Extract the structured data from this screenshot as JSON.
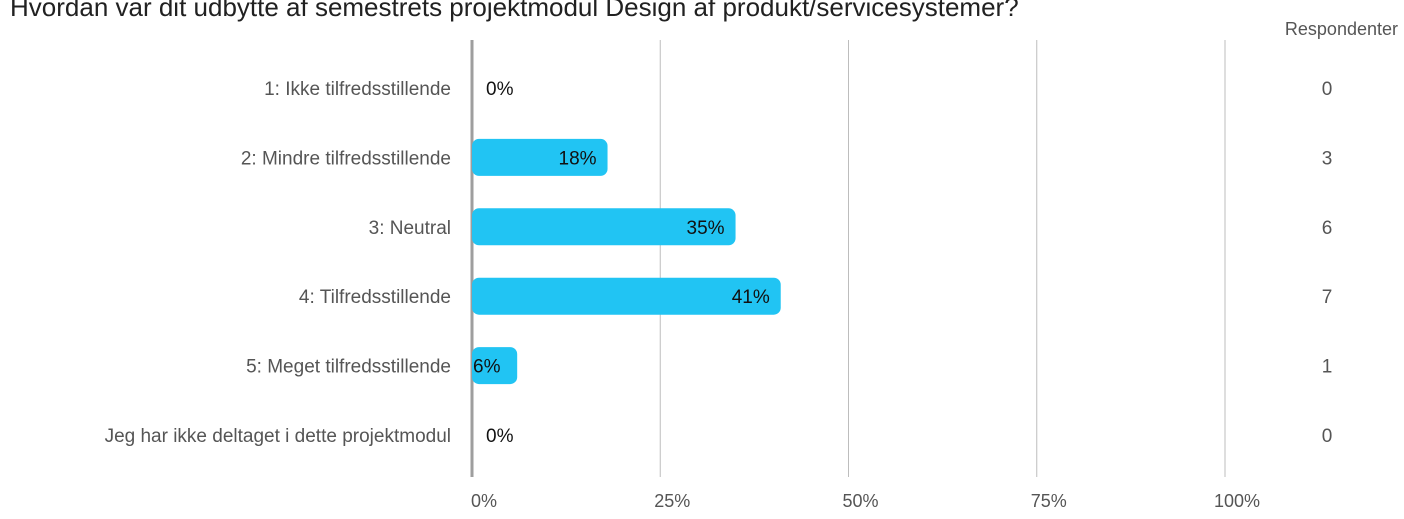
{
  "chart_data": {
    "type": "bar",
    "orientation": "horizontal",
    "title": "Hvordan var dit udbytte af semestrets projektmodul Design af produkt/servicesystemer?",
    "count_header": "Respondenter",
    "categories": [
      "1: Ikke tilfredsstillende",
      "2: Mindre tilfredsstillende",
      "3: Neutral",
      "4: Tilfredsstillende",
      "5: Meget tilfredsstillende",
      "Jeg har ikke deltaget i dette projektmodul"
    ],
    "values": [
      0,
      18,
      35,
      41,
      6,
      0
    ],
    "value_labels": [
      "0%",
      "18%",
      "35%",
      "41%",
      "6%",
      "0%"
    ],
    "counts": [
      "0",
      "3",
      "6",
      "7",
      "1",
      "0"
    ],
    "xlim": [
      0,
      100
    ],
    "x_ticks": [
      0,
      25,
      50,
      75,
      100
    ],
    "x_tick_labels": [
      "0%",
      "25%",
      "50%",
      "75%",
      "100%"
    ],
    "grid": true,
    "bar_color": "#21c4f3",
    "grid_color": "#bdbdbd",
    "axis_color": "#9e9e9e"
  }
}
